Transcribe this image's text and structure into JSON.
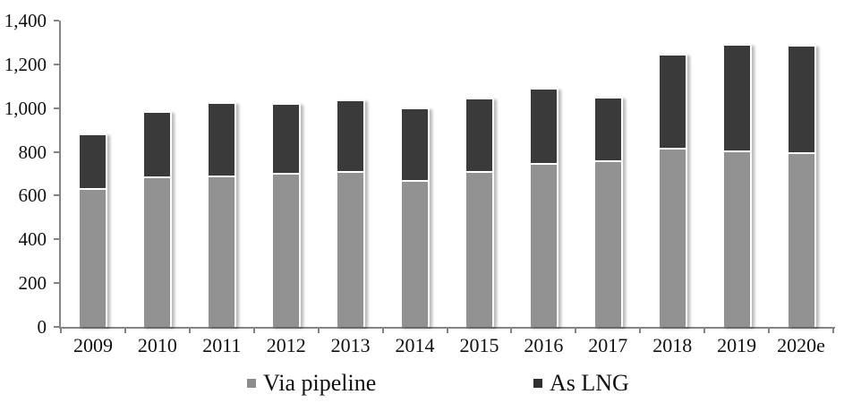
{
  "chart_data": {
    "type": "bar",
    "stacked": true,
    "title": "",
    "xlabel": "",
    "ylabel": "",
    "categories": [
      "2009",
      "2010",
      "2011",
      "2012",
      "2013",
      "2014",
      "2015",
      "2016",
      "2017",
      "2018",
      "2019",
      "2020e"
    ],
    "series": [
      {
        "name": "Via pipeline",
        "color": "#929292",
        "legend_marker_color": "#8c8c8c",
        "values": [
          625,
          680,
          685,
          695,
          705,
          665,
          705,
          740,
          755,
          810,
          800,
          790
        ]
      },
      {
        "name": "As LNG",
        "color": "#3a3a3a",
        "legend_marker_color": "#2f2f2f",
        "values": [
          250,
          300,
          335,
          320,
          325,
          330,
          335,
          345,
          290,
          430,
          485,
          490
        ]
      }
    ],
    "ylim": [
      0,
      1400
    ],
    "ytick_step": 200,
    "ytick_labels": [
      "0",
      "200",
      "400",
      "600",
      "800",
      "1,000",
      "1,200",
      "1,400"
    ],
    "grid": false,
    "legend_position": "bottom",
    "axis_color": "#858585",
    "text_color": "#111111"
  }
}
